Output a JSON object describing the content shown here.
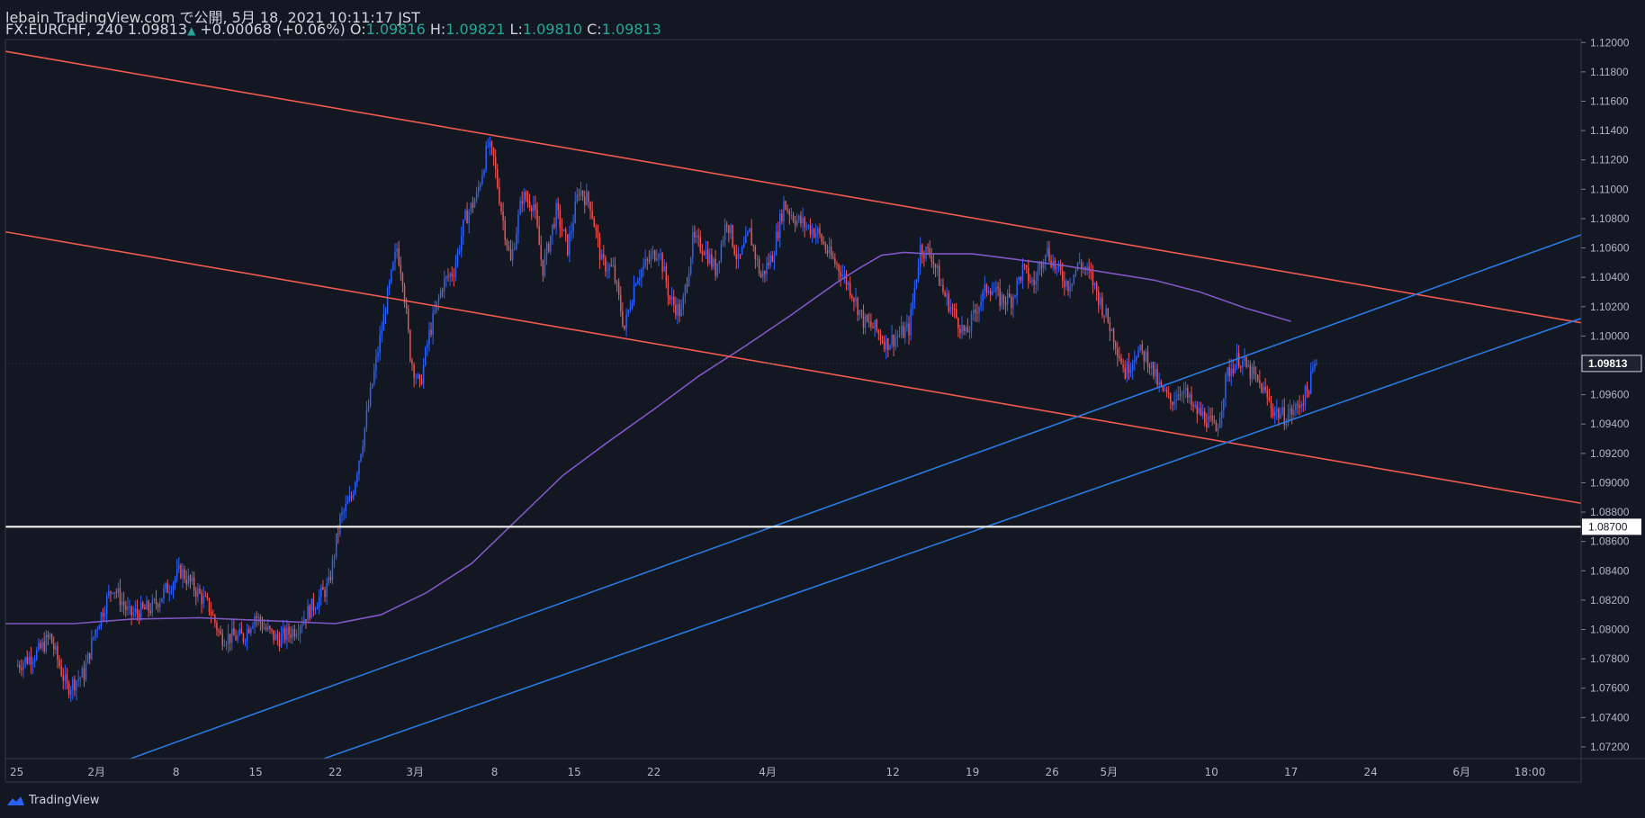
{
  "header": {
    "line1": "lebain TradingView.com で公開, 5月 18, 2021 10:11:17 JST",
    "symbol": "FX:EURCHF, 240",
    "last": "1.09813",
    "change": "+0.00068 (+0.06%)",
    "o_label": "O:",
    "o": "1.09816",
    "h_label": "H:",
    "h": "1.09821",
    "l_label": "L:",
    "l": "1.09810",
    "c_label": "C:",
    "c": "1.09813"
  },
  "brand": "TradingView",
  "colors": {
    "background": "#131722",
    "up": "#2962ff",
    "down": "#ef5350",
    "ma": "#7e57c2",
    "channel": "#f05a50",
    "support": "#2979e0",
    "level": "#ffffff"
  },
  "chart_data": {
    "type": "candlestick",
    "symbol": "FX:EURCHF",
    "interval": "240",
    "ylim": [
      1.0712,
      1.1202
    ],
    "y_ticks": [
      "1.12000",
      "1.11800",
      "1.11600",
      "1.11400",
      "1.11200",
      "1.11000",
      "1.10800",
      "1.10600",
      "1.10400",
      "1.10200",
      "1.10000",
      "1.09800",
      "1.09600",
      "1.09400",
      "1.09200",
      "1.09000",
      "1.08800",
      "1.08600",
      "1.08400",
      "1.08200",
      "1.08000",
      "1.07800",
      "1.07600",
      "1.07400",
      "1.07200"
    ],
    "x_ticks": [
      {
        "label": "25",
        "day": 0
      },
      {
        "label": "2月",
        "day": 7
      },
      {
        "label": "8",
        "day": 14
      },
      {
        "label": "15",
        "day": 21
      },
      {
        "label": "22",
        "day": 28
      },
      {
        "label": "3月",
        "day": 35
      },
      {
        "label": "8",
        "day": 42
      },
      {
        "label": "15",
        "day": 49
      },
      {
        "label": "22",
        "day": 56
      },
      {
        "label": "4月",
        "day": 66
      },
      {
        "label": "12",
        "day": 77
      },
      {
        "label": "19",
        "day": 84
      },
      {
        "label": "26",
        "day": 91
      },
      {
        "label": "5月",
        "day": 96
      },
      {
        "label": "10",
        "day": 105
      },
      {
        "label": "17",
        "day": 112
      },
      {
        "label": "24",
        "day": 119
      },
      {
        "label": "6月",
        "day": 127
      },
      {
        "label": "18:00",
        "day": 133
      }
    ],
    "x_range_days": [
      -1,
      137.5
    ],
    "price_path": [
      [
        0,
        1.0775
      ],
      [
        2,
        1.0785
      ],
      [
        3,
        1.0795
      ],
      [
        4.5,
        1.076
      ],
      [
        6,
        1.077
      ],
      [
        7,
        1.08
      ],
      [
        8.5,
        1.083
      ],
      [
        10,
        1.081
      ],
      [
        12,
        1.0815
      ],
      [
        14.5,
        1.084
      ],
      [
        15.5,
        1.083
      ],
      [
        17,
        1.0815
      ],
      [
        18,
        1.0795
      ],
      [
        20,
        1.0795
      ],
      [
        21,
        1.081
      ],
      [
        22,
        1.08
      ],
      [
        23,
        1.0793
      ],
      [
        24.5,
        1.08
      ],
      [
        26,
        1.0815
      ],
      [
        27.5,
        1.083
      ],
      [
        28.5,
        1.0875
      ],
      [
        29.5,
        1.089
      ],
      [
        30.5,
        1.093
      ],
      [
        31.5,
        1.0975
      ],
      [
        32.5,
        1.102
      ],
      [
        33.5,
        1.106
      ],
      [
        34,
        1.104
      ],
      [
        34.7,
        1.0985
      ],
      [
        35.5,
        1.0965
      ],
      [
        36.3,
        1.1
      ],
      [
        37.5,
        1.1035
      ],
      [
        38.5,
        1.1045
      ],
      [
        39.5,
        1.108
      ],
      [
        40.5,
        1.1095
      ],
      [
        41.5,
        1.113
      ],
      [
        42,
        1.112
      ],
      [
        42.8,
        1.108
      ],
      [
        43.5,
        1.105
      ],
      [
        44.5,
        1.1095
      ],
      [
        45.5,
        1.109
      ],
      [
        46.3,
        1.1045
      ],
      [
        47.5,
        1.1085
      ],
      [
        48.5,
        1.106
      ],
      [
        49.5,
        1.11
      ],
      [
        50.5,
        1.109
      ],
      [
        51.5,
        1.105
      ],
      [
        52.5,
        1.1045
      ],
      [
        53.5,
        1.1005
      ],
      [
        54.5,
        1.104
      ],
      [
        55.5,
        1.105
      ],
      [
        56.5,
        1.106
      ],
      [
        57.5,
        1.1025
      ],
      [
        58.5,
        1.1015
      ],
      [
        59.5,
        1.1065
      ],
      [
        60.5,
        1.106
      ],
      [
        61.5,
        1.1045
      ],
      [
        62.5,
        1.108
      ],
      [
        63.5,
        1.105
      ],
      [
        64.5,
        1.107
      ],
      [
        65.5,
        1.104
      ],
      [
        66.5,
        1.1055
      ],
      [
        67.5,
        1.109
      ],
      [
        68.5,
        1.108
      ],
      [
        69.5,
        1.1075
      ],
      [
        70.5,
        1.107
      ],
      [
        71.5,
        1.1055
      ],
      [
        72.5,
        1.1045
      ],
      [
        73.5,
        1.103
      ],
      [
        74.5,
        1.101
      ],
      [
        75.5,
        1.1005
      ],
      [
        76.5,
        1.0995
      ],
      [
        77.5,
        1.1
      ],
      [
        78.5,
        1.1005
      ],
      [
        79.5,
        1.106
      ],
      [
        80.5,
        1.1055
      ],
      [
        81.5,
        1.103
      ],
      [
        82.5,
        1.1015
      ],
      [
        83.5,
        1.1
      ],
      [
        84.5,
        1.102
      ],
      [
        85.5,
        1.1035
      ],
      [
        86.5,
        1.1025
      ],
      [
        87.5,
        1.1025
      ],
      [
        88.5,
        1.1045
      ],
      [
        89.5,
        1.1035
      ],
      [
        90.5,
        1.106
      ],
      [
        91.5,
        1.1045
      ],
      [
        92.5,
        1.1035
      ],
      [
        93.5,
        1.105
      ],
      [
        94.5,
        1.104
      ],
      [
        95.5,
        1.102
      ],
      [
        96.5,
        1.1
      ],
      [
        97.5,
        1.0975
      ],
      [
        98.5,
        1.099
      ],
      [
        99.5,
        1.0985
      ],
      [
        100.5,
        1.0965
      ],
      [
        101.5,
        1.0955
      ],
      [
        102.5,
        1.0965
      ],
      [
        103.5,
        1.095
      ],
      [
        104.5,
        1.0945
      ],
      [
        105.5,
        1.0935
      ],
      [
        106.5,
        1.0975
      ],
      [
        107.5,
        1.0985
      ],
      [
        108.5,
        1.0975
      ],
      [
        109.5,
        1.0965
      ],
      [
        110.5,
        1.095
      ],
      [
        111.5,
        1.0945
      ],
      [
        112.5,
        1.095
      ],
      [
        113.5,
        1.0962
      ],
      [
        114,
        1.0975
      ],
      [
        114.3,
        1.09813
      ]
    ],
    "moving_average": [
      [
        -1,
        1.0804
      ],
      [
        5,
        1.0804
      ],
      [
        10,
        1.0807
      ],
      [
        16,
        1.0808
      ],
      [
        22,
        1.0806
      ],
      [
        28,
        1.0804
      ],
      [
        32,
        1.081
      ],
      [
        36,
        1.0825
      ],
      [
        40,
        1.0845
      ],
      [
        44,
        1.0875
      ],
      [
        48,
        1.0905
      ],
      [
        52,
        1.0928
      ],
      [
        56,
        1.095
      ],
      [
        60,
        1.0973
      ],
      [
        64,
        1.0993
      ],
      [
        68,
        1.1014
      ],
      [
        72,
        1.1036
      ],
      [
        74,
        1.1046
      ],
      [
        76,
        1.1055
      ],
      [
        78,
        1.1057
      ],
      [
        80,
        1.1056
      ],
      [
        84,
        1.1056
      ],
      [
        88,
        1.1052
      ],
      [
        92,
        1.1048
      ],
      [
        96,
        1.1043
      ],
      [
        100,
        1.1038
      ],
      [
        104,
        1.103
      ],
      [
        108,
        1.1019
      ],
      [
        112,
        1.101
      ]
    ],
    "current_price": 1.09813,
    "current_price_label": "1.09813",
    "horizontal_level": 1.087,
    "horizontal_level_label": "1.08700",
    "trendlines": [
      {
        "name": "upper-channel-line",
        "color": "channel",
        "from": [
          -1,
          1.1194
        ],
        "to": [
          137.5,
          1.1009
        ]
      },
      {
        "name": "lower-channel-line",
        "color": "channel",
        "from": [
          -1,
          1.1071
        ],
        "to": [
          137.5,
          1.0886
        ]
      },
      {
        "name": "upper-support-line",
        "color": "support",
        "from": [
          10,
          1.0712
        ],
        "to": [
          137.5,
          1.1069
        ]
      },
      {
        "name": "lower-support-line",
        "color": "support",
        "from": [
          27,
          1.0712
        ],
        "to": [
          137.5,
          1.1012
        ]
      }
    ]
  }
}
